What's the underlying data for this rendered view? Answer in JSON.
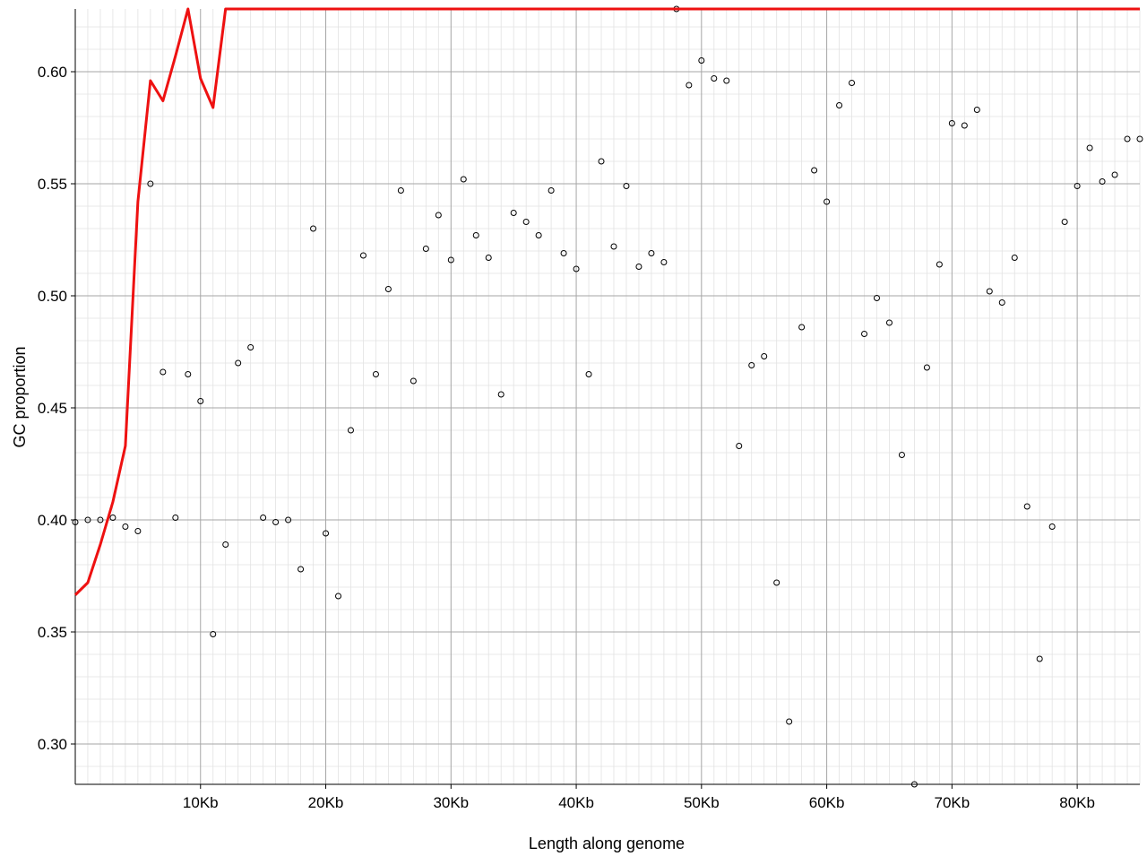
{
  "chart_data": {
    "type": "scatter",
    "title": "",
    "xlabel": "Length along genome",
    "ylabel": "GC proportion",
    "xlim": [
      0,
      85000
    ],
    "ylim": [
      0.282,
      0.628
    ],
    "x_ticks": [
      {
        "value": 10000,
        "label": "10Kb"
      },
      {
        "value": 20000,
        "label": "20Kb"
      },
      {
        "value": 30000,
        "label": "30Kb"
      },
      {
        "value": 40000,
        "label": "40Kb"
      },
      {
        "value": 50000,
        "label": "50Kb"
      },
      {
        "value": 60000,
        "label": "60Kb"
      },
      {
        "value": 70000,
        "label": "70Kb"
      },
      {
        "value": 80000,
        "label": "80Kb"
      }
    ],
    "y_ticks": [
      {
        "value": 0.3,
        "label": "0.30"
      },
      {
        "value": 0.35,
        "label": "0.35"
      },
      {
        "value": 0.4,
        "label": "0.40"
      },
      {
        "value": 0.45,
        "label": "0.45"
      },
      {
        "value": 0.5,
        "label": "0.50"
      },
      {
        "value": 0.55,
        "label": "0.55"
      },
      {
        "value": 0.6,
        "label": "0.60"
      }
    ],
    "grid": true,
    "minor_grid": true,
    "series": [
      {
        "kind": "points",
        "color": "#000000",
        "x": [
          0,
          1000,
          2000,
          3000,
          4000,
          5000,
          6000,
          7000,
          8000,
          9000,
          10000,
          11000,
          12000,
          13000,
          14000,
          15000,
          16000,
          17000,
          18000,
          19000,
          20000,
          21000,
          22000,
          23000,
          24000,
          25000,
          26000,
          27000,
          28000,
          29000,
          30000,
          31000,
          32000,
          33000,
          34000,
          35000,
          36000,
          37000,
          38000,
          39000,
          40000,
          41000,
          42000,
          43000,
          44000,
          45000,
          46000,
          47000,
          48000,
          49000,
          50000,
          51000,
          52000,
          53000,
          54000,
          55000,
          56000,
          57000,
          58000,
          59000,
          60000,
          61000,
          62000,
          63000,
          64000,
          65000,
          66000,
          67000,
          68000,
          69000,
          70000,
          71000,
          72000,
          73000,
          74000,
          75000,
          76000,
          77000,
          78000,
          79000,
          80000,
          81000,
          82000,
          83000,
          84000,
          85000
        ],
        "y": [
          0.399,
          0.4,
          0.4,
          0.401,
          0.397,
          0.395,
          0.55,
          0.466,
          0.401,
          0.465,
          0.453,
          0.349,
          0.389,
          0.47,
          0.477,
          0.401,
          0.399,
          0.4,
          0.378,
          0.53,
          0.394,
          0.366,
          0.44,
          0.518,
          0.465,
          0.503,
          0.547,
          0.462,
          0.521,
          0.536,
          0.516,
          0.552,
          0.527,
          0.517,
          0.456,
          0.537,
          0.533,
          0.527,
          0.547,
          0.519,
          0.512,
          0.465,
          0.56,
          0.522,
          0.549,
          0.513,
          0.519,
          0.515,
          0.628,
          0.594,
          0.605,
          0.597,
          0.596,
          0.433,
          0.469,
          0.473,
          0.372,
          0.31,
          0.486,
          0.556,
          0.542,
          0.585,
          0.595,
          0.483,
          0.499,
          0.488,
          0.429,
          0.282,
          0.468,
          0.514,
          0.577,
          0.576,
          0.583,
          0.502,
          0.497,
          0.517,
          0.406,
          0.338,
          0.397,
          0.533,
          0.549,
          0.566,
          0.551,
          0.554,
          0.57,
          0.57
        ]
      },
      {
        "kind": "line",
        "color": "#ee1111",
        "x": [
          0,
          1000,
          2000,
          3000,
          4000,
          5000,
          6000,
          7000,
          8000,
          9000,
          10000,
          11000,
          12000,
          85000
        ],
        "y": [
          0.3665,
          0.372,
          0.389,
          0.408,
          0.433,
          0.542,
          0.596,
          0.587,
          0.607,
          0.628,
          0.597,
          0.584,
          0.628,
          0.628
        ]
      }
    ]
  }
}
